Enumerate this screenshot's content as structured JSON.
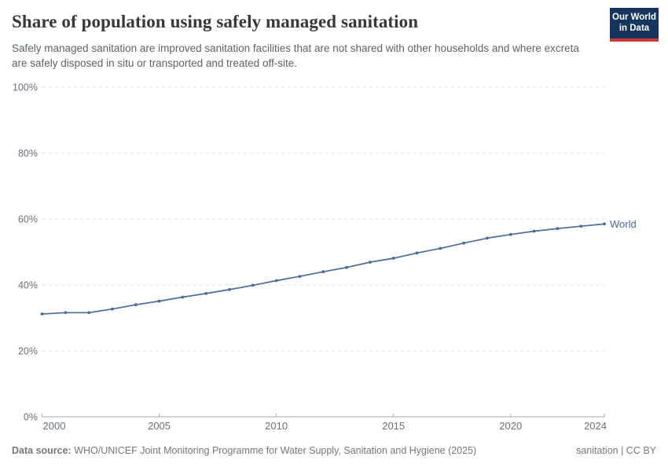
{
  "header": {
    "title": "Share of population using safely managed sanitation",
    "subtitle": "Safely managed sanitation are improved sanitation facilities that are not shared with other households and where excreta are safely disposed in situ or transported and treated off-site.",
    "logo": {
      "line1": "Our World",
      "line2": "in Data"
    }
  },
  "chart_data": {
    "type": "line",
    "title": "Share of population using safely managed sanitation",
    "x": [
      2000,
      2001,
      2002,
      2003,
      2004,
      2005,
      2006,
      2007,
      2008,
      2009,
      2010,
      2011,
      2012,
      2013,
      2014,
      2015,
      2016,
      2017,
      2018,
      2019,
      2020,
      2021,
      2022,
      2023,
      2024
    ],
    "series": [
      {
        "name": "World",
        "color": "#4C6A9C",
        "values": [
          31.2,
          31.6,
          31.6,
          32.7,
          34.0,
          35.1,
          36.3,
          37.4,
          38.6,
          39.9,
          41.3,
          42.6,
          44.0,
          45.3,
          46.9,
          48.1,
          49.7,
          51.1,
          52.7,
          54.2,
          55.3,
          56.3,
          57.1,
          57.8,
          58.5
        ]
      }
    ],
    "xlabel": "",
    "ylabel": "",
    "xlim": [
      2000,
      2024
    ],
    "ylim": [
      0,
      100
    ],
    "yticks": [
      0,
      20,
      40,
      60,
      80,
      100
    ],
    "ytick_suffix": "%",
    "xticks": [
      2000,
      2005,
      2010,
      2015,
      2020,
      2024
    ],
    "grid": "horizontal-dashed",
    "legend": "end-of-line-label"
  },
  "footer": {
    "datasource_label": "Data source:",
    "datasource_text": " WHO/UNICEF Joint Monitoring Programme for Water Supply, Sanitation and Hygiene (2025)",
    "license": "sanitation | CC BY"
  },
  "colors": {
    "line": "#4C6A9C",
    "title": "#383838",
    "subtitle": "#5b6369",
    "axis_text": "#67717a",
    "gridline": "#e1e1e1",
    "axis_line": "#a7aaad",
    "logo_bg": "#15355e",
    "logo_stripe": "#cf3b32",
    "footer_text": "#73777c"
  }
}
